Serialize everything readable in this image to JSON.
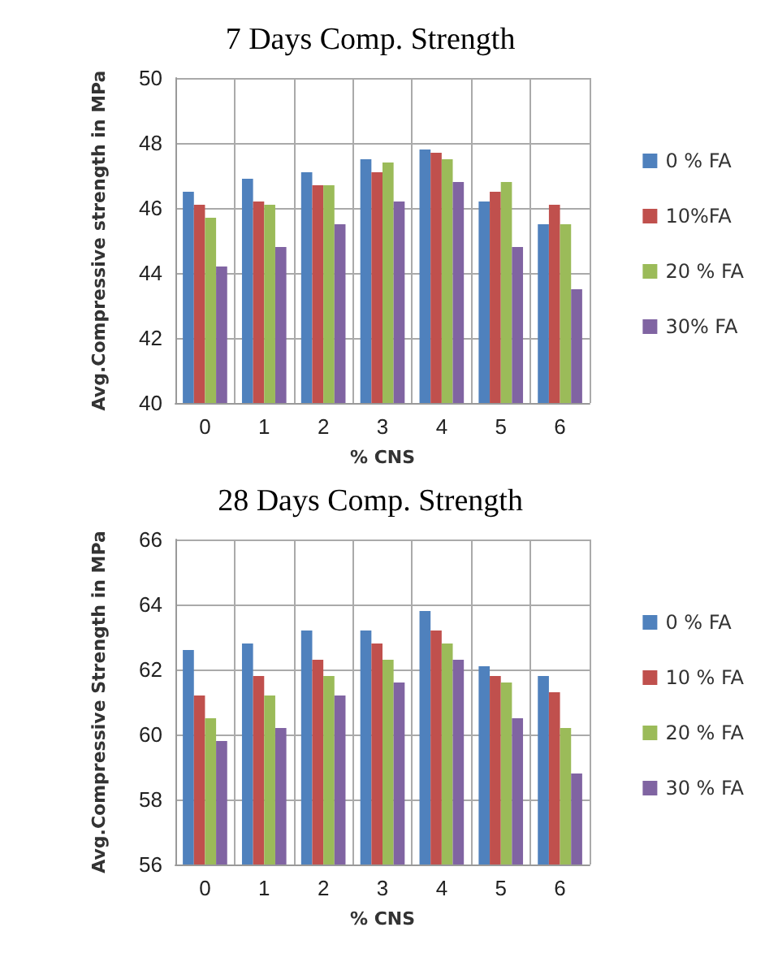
{
  "chart_data": [
    {
      "type": "bar",
      "title": "7 Days Comp. Strength",
      "xlabel": "% CNS",
      "ylabel": "Avg.Compressive strength in MPa",
      "categories": [
        "0",
        "1",
        "2",
        "3",
        "4",
        "5",
        "6"
      ],
      "ylim": [
        40,
        50
      ],
      "yticks": [
        40,
        42,
        44,
        46,
        48,
        50
      ],
      "grid": true,
      "legend": "right",
      "series": [
        {
          "name": "0 % FA",
          "color": "#4f81bd",
          "values": [
            46.5,
            46.9,
            47.1,
            47.5,
            47.8,
            46.2,
            45.5
          ]
        },
        {
          "name": "10%FA",
          "color": "#c0504d",
          "values": [
            46.1,
            46.2,
            46.7,
            47.1,
            47.7,
            46.5,
            46.1
          ]
        },
        {
          "name": "20 % FA",
          "color": "#9bbb59",
          "values": [
            45.7,
            46.1,
            46.7,
            47.4,
            47.5,
            46.8,
            45.5
          ]
        },
        {
          "name": "30% FA",
          "color": "#8064a2",
          "values": [
            44.2,
            44.8,
            45.5,
            46.2,
            46.8,
            44.8,
            43.5
          ]
        }
      ]
    },
    {
      "type": "bar",
      "title": "28 Days Comp. Strength",
      "xlabel": "% CNS",
      "ylabel": "Avg.Compressive Strength in MPa",
      "categories": [
        "0",
        "1",
        "2",
        "3",
        "4",
        "5",
        "6"
      ],
      "ylim": [
        56,
        66
      ],
      "yticks": [
        56,
        58,
        60,
        62,
        64,
        66
      ],
      "grid": true,
      "legend": "right",
      "series": [
        {
          "name": "0 % FA",
          "color": "#4f81bd",
          "values": [
            62.6,
            62.8,
            63.2,
            63.2,
            63.8,
            62.1,
            61.8
          ]
        },
        {
          "name": "10 % FA",
          "color": "#c0504d",
          "values": [
            61.2,
            61.8,
            62.3,
            62.8,
            63.2,
            61.8,
            61.3
          ]
        },
        {
          "name": "20 % FA",
          "color": "#9bbb59",
          "values": [
            60.5,
            61.2,
            61.8,
            62.3,
            62.8,
            61.6,
            60.2
          ]
        },
        {
          "name": "30 % FA",
          "color": "#8064a2",
          "values": [
            59.8,
            60.2,
            61.2,
            61.6,
            62.3,
            60.5,
            58.8
          ]
        }
      ]
    }
  ]
}
